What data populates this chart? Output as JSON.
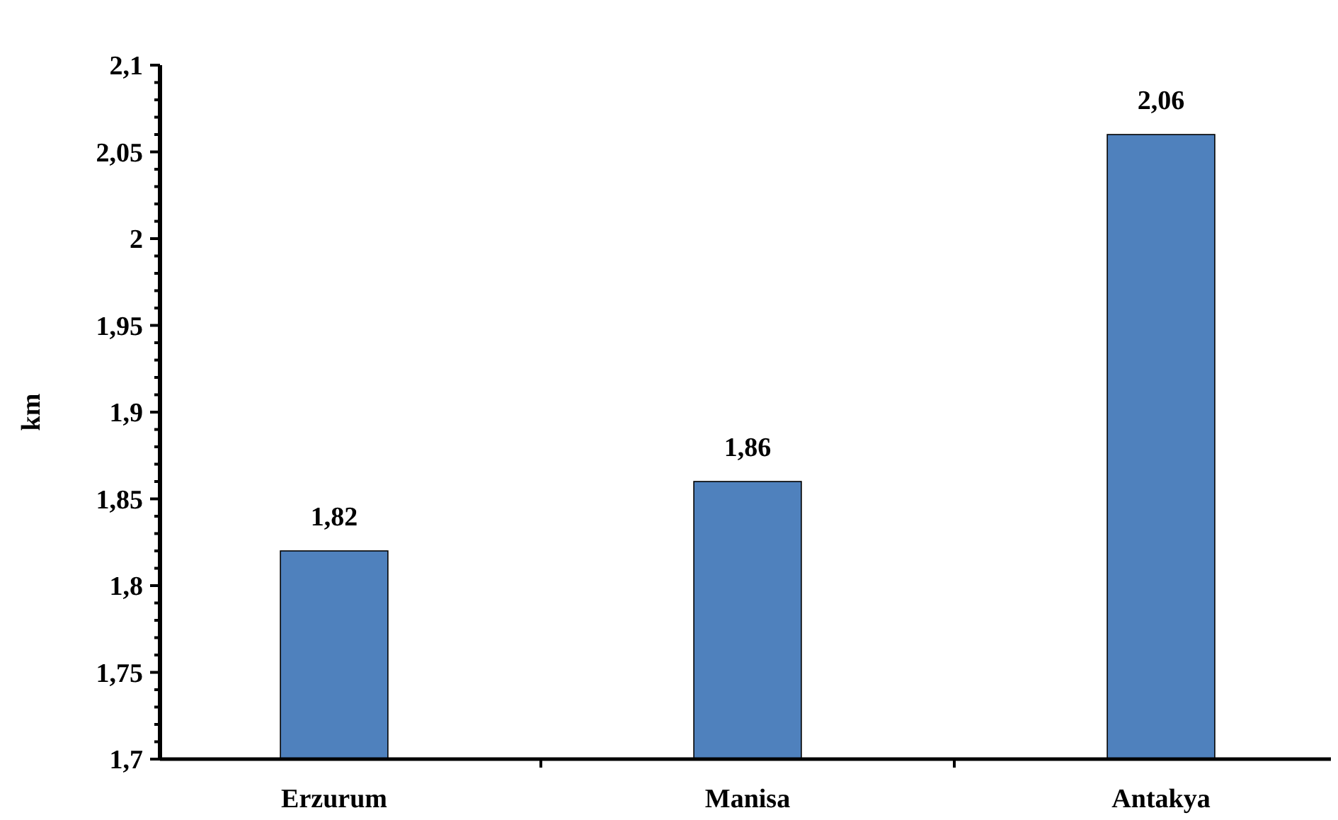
{
  "chart_data": {
    "type": "bar",
    "ylabel": "km",
    "categories": [
      "Erzurum",
      "Manisa",
      "Antakya"
    ],
    "values": [
      1.82,
      1.86,
      2.06
    ],
    "color": "#4f81bd",
    "value_labels": [
      "1,82",
      "1,86",
      "2,06"
    ],
    "ylim": [
      1.7,
      2.1
    ],
    "yticks": [
      {
        "value": 1.7,
        "label": "1,7"
      },
      {
        "value": 1.71,
        "label": null
      },
      {
        "value": 1.72,
        "label": null
      },
      {
        "value": 1.73,
        "label": null
      },
      {
        "value": 1.74,
        "label": null
      },
      {
        "value": 1.75,
        "label": "1,75"
      },
      {
        "value": 1.76,
        "label": null
      },
      {
        "value": 1.77,
        "label": null
      },
      {
        "value": 1.78,
        "label": null
      },
      {
        "value": 1.79,
        "label": null
      },
      {
        "value": 1.8,
        "label": "1,8"
      },
      {
        "value": 1.81,
        "label": null
      },
      {
        "value": 1.82,
        "label": null
      },
      {
        "value": 1.83,
        "label": null
      },
      {
        "value": 1.84,
        "label": null
      },
      {
        "value": 1.85,
        "label": "1,85"
      },
      {
        "value": 1.86,
        "label": null
      },
      {
        "value": 1.87,
        "label": null
      },
      {
        "value": 1.88,
        "label": null
      },
      {
        "value": 1.89,
        "label": null
      },
      {
        "value": 1.9,
        "label": "1,9"
      },
      {
        "value": 1.91,
        "label": null
      },
      {
        "value": 1.92,
        "label": null
      },
      {
        "value": 1.93,
        "label": null
      },
      {
        "value": 1.94,
        "label": null
      },
      {
        "value": 1.95,
        "label": "1,95"
      },
      {
        "value": 1.96,
        "label": null
      },
      {
        "value": 1.97,
        "label": null
      },
      {
        "value": 1.98,
        "label": null
      },
      {
        "value": 1.99,
        "label": null
      },
      {
        "value": 2,
        "label": "2"
      },
      {
        "value": 2.01,
        "label": null
      },
      {
        "value": 2.02,
        "label": null
      },
      {
        "value": 2.03,
        "label": null
      },
      {
        "value": 2.04,
        "label": null
      },
      {
        "value": 2.05,
        "label": "2,05"
      },
      {
        "value": 2.06,
        "label": null
      },
      {
        "value": 2.07,
        "label": null
      },
      {
        "value": 2.08,
        "label": null
      },
      {
        "value": 2.09,
        "label": null
      },
      {
        "value": 2.1,
        "label": "2,1"
      }
    ],
    "grid": false
  }
}
